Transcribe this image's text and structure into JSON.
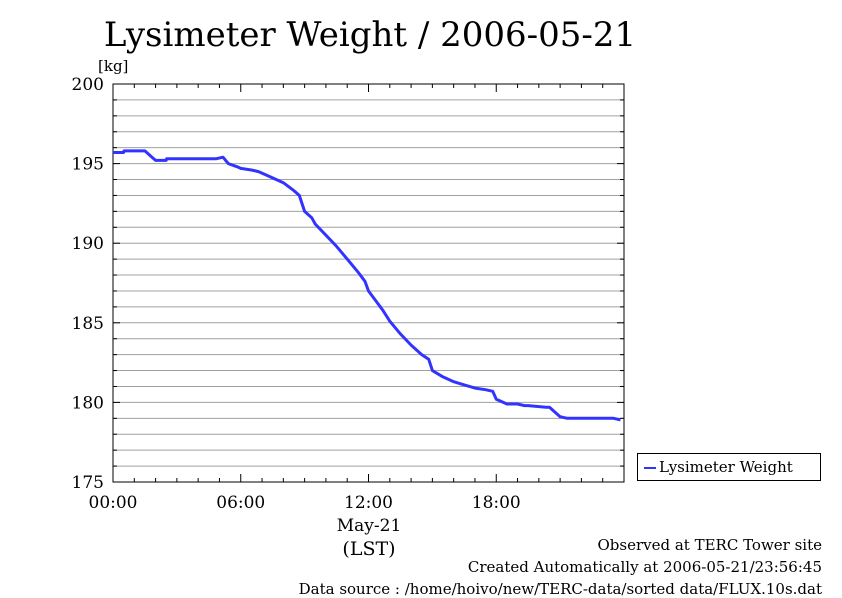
{
  "chart_data": {
    "type": "line",
    "title": "Lysimeter Weight / 2006-05-21",
    "ylabel": "[kg]",
    "xlabel": "(LST)",
    "date_label": "May-21",
    "ylim": [
      175,
      200
    ],
    "yticks": [
      "175",
      "180",
      "185",
      "190",
      "195",
      "200"
    ],
    "xlim": [
      "00:00",
      "24:00"
    ],
    "xticks": [
      "00:00",
      "06:00",
      "12:00",
      "18:00"
    ],
    "grid": true,
    "legend_position": "right",
    "series": [
      {
        "name": "Lysimeter Weight",
        "color": "#3333ff",
        "x": [
          "00:00",
          "00:30",
          "00:31",
          "01:30",
          "01:50",
          "02:00",
          "02:30",
          "02:31",
          "04:50",
          "05:10",
          "05:25",
          "05:50",
          "06:00",
          "06:30",
          "06:50",
          "07:10",
          "07:40",
          "08:00",
          "08:30",
          "08:45",
          "09:00",
          "09:20",
          "09:30",
          "10:00",
          "10:30",
          "11:00",
          "11:30",
          "11:50",
          "12:00",
          "12:20",
          "12:40",
          "13:00",
          "13:30",
          "14:00",
          "14:30",
          "14:50",
          "15:00",
          "15:30",
          "16:00",
          "16:30",
          "17:00",
          "17:30",
          "17:50",
          "18:00",
          "18:20",
          "18:30",
          "19:00",
          "19:20",
          "19:30",
          "20:20",
          "20:30",
          "21:00",
          "21:20",
          "21:30",
          "22:00",
          "22:30",
          "23:00",
          "23:30",
          "23:50"
        ],
        "y": [
          195.7,
          195.7,
          195.8,
          195.8,
          195.4,
          195.2,
          195.2,
          195.3,
          195.3,
          195.4,
          195.0,
          194.8,
          194.7,
          194.6,
          194.5,
          194.3,
          194.0,
          193.8,
          193.3,
          193.0,
          192.0,
          191.6,
          191.2,
          190.5,
          189.8,
          189.0,
          188.2,
          187.6,
          187.0,
          186.4,
          185.8,
          185.1,
          184.3,
          183.6,
          183.0,
          182.7,
          182.0,
          181.6,
          181.3,
          181.1,
          180.9,
          180.8,
          180.7,
          180.2,
          180.0,
          179.9,
          179.9,
          179.8,
          179.8,
          179.7,
          179.7,
          179.1,
          179.0,
          179.0,
          179.0,
          179.0,
          179.0,
          179.0,
          178.9
        ]
      }
    ]
  },
  "footer": {
    "observed": "Observed at TERC Tower site",
    "created": "Created Automatically at 2006-05-21/23:56:45",
    "source": "Data source : /home/hoivo/new/TERC-data/sorted  data/FLUX.10s.dat"
  }
}
